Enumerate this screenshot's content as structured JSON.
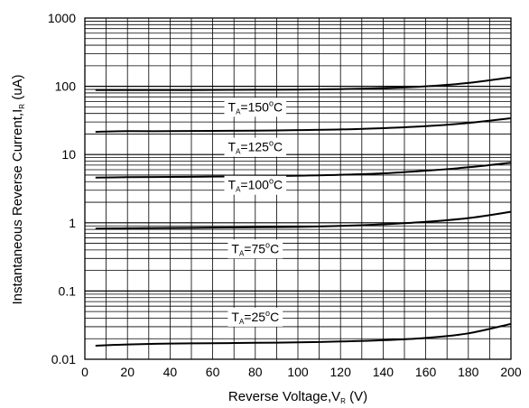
{
  "chart_data": {
    "type": "line",
    "title": "",
    "xlabel": {
      "main": "Reverse Voltage,V",
      "sub": "R",
      "unit": " (V)"
    },
    "ylabel": {
      "main": "Instantaneous Reverse Current,I",
      "sub": "R",
      "unit": " (uA)"
    },
    "xlim": [
      0,
      200
    ],
    "ylim": [
      0.01,
      1000
    ],
    "yscale": "log",
    "grid": true,
    "x_ticks": [
      0,
      20,
      40,
      60,
      80,
      100,
      120,
      140,
      160,
      180,
      200
    ],
    "x_tick_labels": [
      "0",
      "20",
      "40",
      "60",
      "80",
      "100",
      "120",
      "140",
      "160",
      "180",
      "200"
    ],
    "y_ticks": [
      0.01,
      0.1,
      1,
      10,
      100,
      1000
    ],
    "y_tick_labels": [
      "0.01",
      "0.1",
      "1",
      "10",
      "100",
      "1000"
    ],
    "series": [
      {
        "name": "150",
        "label_x": 80,
        "label_y": 50,
        "x": [
          5,
          20,
          40,
          60,
          80,
          100,
          120,
          140,
          160,
          180,
          200
        ],
        "y": [
          88,
          88,
          88,
          88.5,
          89,
          89.5,
          91,
          94,
          100,
          112,
          135
        ]
      },
      {
        "name": "125",
        "label_x": 80,
        "label_y": 13,
        "x": [
          5,
          20,
          40,
          60,
          80,
          100,
          120,
          140,
          160,
          180,
          200
        ],
        "y": [
          21.5,
          22,
          22,
          22.2,
          22.4,
          22.8,
          23.3,
          24.3,
          26,
          29,
          34
        ]
      },
      {
        "name": "100",
        "label_x": 80,
        "label_y": 3.6,
        "x": [
          5,
          20,
          40,
          60,
          80,
          100,
          120,
          140,
          160,
          180,
          200
        ],
        "y": [
          4.6,
          4.65,
          4.7,
          4.75,
          4.8,
          4.9,
          5.05,
          5.3,
          5.8,
          6.5,
          7.6
        ]
      },
      {
        "name": "75",
        "label_x": 80,
        "label_y": 0.42,
        "x": [
          5,
          20,
          40,
          60,
          80,
          100,
          120,
          140,
          160,
          180,
          200
        ],
        "y": [
          0.82,
          0.83,
          0.84,
          0.85,
          0.86,
          0.87,
          0.9,
          0.95,
          1.03,
          1.17,
          1.45
        ]
      },
      {
        "name": "25",
        "label_x": 80,
        "label_y": 0.042,
        "x": [
          5,
          20,
          40,
          60,
          80,
          100,
          120,
          140,
          160,
          180,
          200
        ],
        "y": [
          0.0158,
          0.0165,
          0.017,
          0.0172,
          0.0174,
          0.0177,
          0.0182,
          0.019,
          0.0205,
          0.024,
          0.033
        ]
      }
    ],
    "label_prefix": "T",
    "label_prefix_sub": "A",
    "label_eq": "=",
    "label_unit_sup": "o",
    "label_unit": "C"
  }
}
